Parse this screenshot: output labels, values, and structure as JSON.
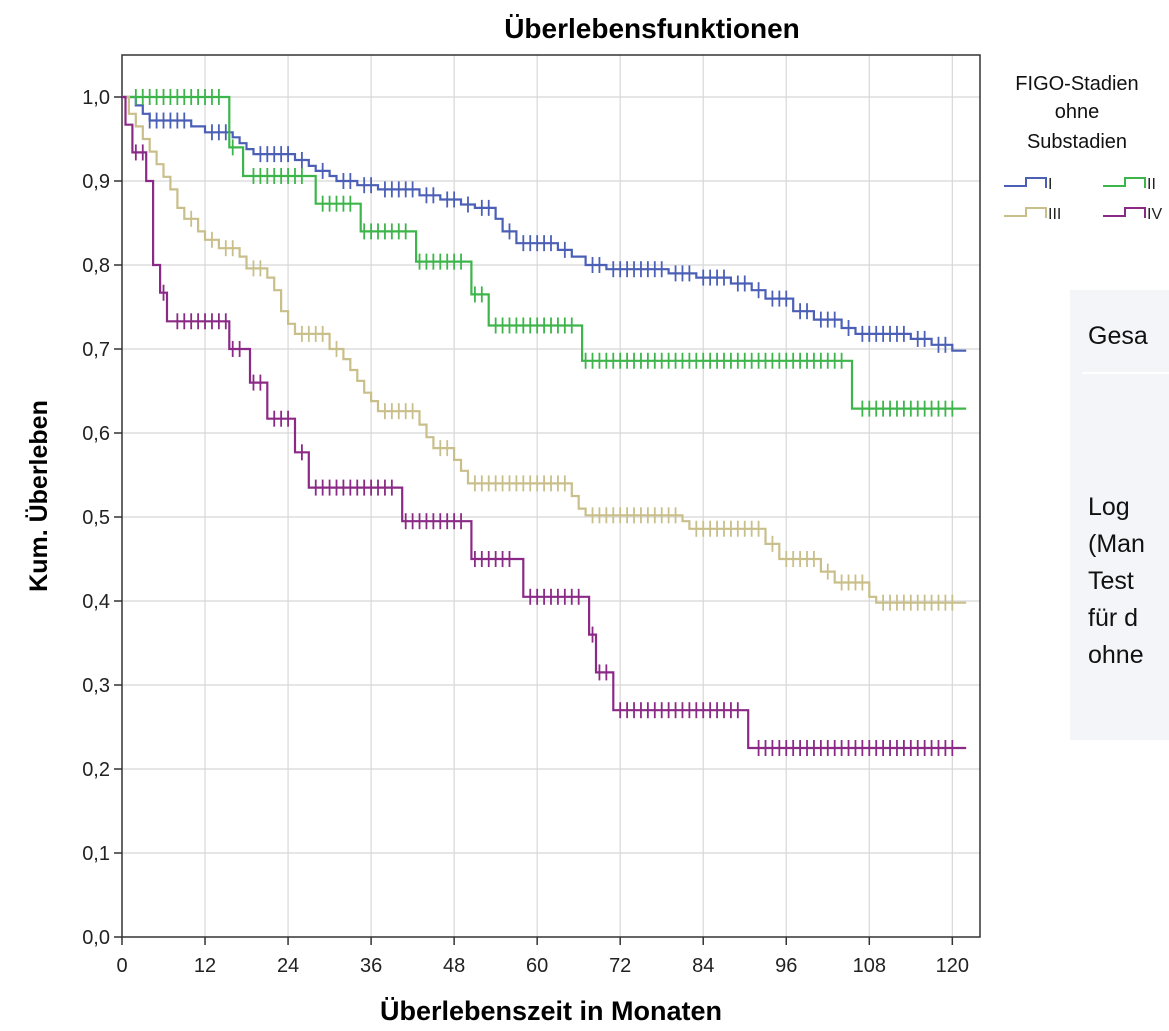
{
  "chart_data": {
    "type": "line",
    "step": true,
    "title": "Überlebensfunktionen",
    "xlabel": "Überlebenszeit in Monaten",
    "ylabel": "Kum. Überleben",
    "xlim": [
      0,
      124
    ],
    "ylim": [
      0,
      1.05
    ],
    "xticks": [
      "0",
      "12",
      "24",
      "36",
      "48",
      "60",
      "72",
      "84",
      "96",
      "108",
      "120"
    ],
    "yticks": [
      "0,0",
      "0,1",
      "0,2",
      "0,3",
      "0,4",
      "0,5",
      "0,6",
      "0,7",
      "0,8",
      "0,9",
      "1,0"
    ],
    "grid": true,
    "legend": {
      "title_lines": [
        "FIGO-Stadien",
        "ohne",
        "Substadien"
      ],
      "placement": "top-right",
      "entries": [
        "I",
        "II",
        "III",
        "IV"
      ]
    },
    "series": [
      {
        "name": "I",
        "color": "#4a5fb5",
        "steps": [
          [
            0,
            1.0
          ],
          [
            2,
            0.99
          ],
          [
            3,
            0.98
          ],
          [
            4,
            0.972
          ],
          [
            10,
            0.965
          ],
          [
            12,
            0.958
          ],
          [
            16,
            0.952
          ],
          [
            17,
            0.945
          ],
          [
            18,
            0.938
          ],
          [
            19,
            0.932
          ],
          [
            25,
            0.925
          ],
          [
            27,
            0.918
          ],
          [
            28,
            0.912
          ],
          [
            30,
            0.906
          ],
          [
            31,
            0.9
          ],
          [
            34,
            0.895
          ],
          [
            37,
            0.89
          ],
          [
            43,
            0.883
          ],
          [
            46,
            0.878
          ],
          [
            49,
            0.872
          ],
          [
            51,
            0.868
          ],
          [
            54,
            0.855
          ],
          [
            55,
            0.84
          ],
          [
            57,
            0.826
          ],
          [
            63,
            0.818
          ],
          [
            65,
            0.81
          ],
          [
            67,
            0.8
          ],
          [
            70,
            0.795
          ],
          [
            79,
            0.79
          ],
          [
            83,
            0.785
          ],
          [
            88,
            0.778
          ],
          [
            91,
            0.77
          ],
          [
            93,
            0.76
          ],
          [
            97,
            0.745
          ],
          [
            100,
            0.735
          ],
          [
            104,
            0.725
          ],
          [
            106,
            0.718
          ],
          [
            114,
            0.712
          ],
          [
            117,
            0.705
          ],
          [
            120,
            0.698
          ],
          [
            122,
            0.698
          ]
        ],
        "censored": [
          4,
          5,
          6,
          7,
          8,
          9,
          13,
          14,
          15,
          20,
          21,
          22,
          23,
          24,
          26,
          29,
          32,
          33,
          35,
          36,
          38,
          39,
          40,
          41,
          42,
          44,
          45,
          47,
          48,
          50,
          52,
          53,
          56,
          58,
          59,
          60,
          61,
          62,
          64,
          68,
          69,
          71,
          72,
          73,
          74,
          75,
          76,
          77,
          78,
          80,
          81,
          82,
          84,
          85,
          86,
          87,
          89,
          90,
          92,
          94,
          95,
          96,
          98,
          99,
          101,
          102,
          103,
          105,
          107,
          108,
          109,
          110,
          111,
          112,
          113,
          115,
          116,
          118,
          119
        ]
      },
      {
        "name": "II",
        "color": "#3db54a",
        "steps": [
          [
            0,
            1.0
          ],
          [
            15.5,
            0.94
          ],
          [
            17.5,
            0.906
          ],
          [
            28,
            0.873
          ],
          [
            34.5,
            0.84
          ],
          [
            42.5,
            0.804
          ],
          [
            50.5,
            0.765
          ],
          [
            53,
            0.728
          ],
          [
            66.5,
            0.686
          ],
          [
            105.5,
            0.629
          ],
          [
            122,
            0.629
          ]
        ],
        "censored": [
          2,
          3,
          4,
          5,
          6,
          7,
          8,
          9,
          10,
          11,
          12,
          13,
          14,
          16,
          19,
          20,
          21,
          22,
          23,
          24,
          25,
          26,
          29,
          30,
          31,
          32,
          33,
          35,
          36,
          37,
          38,
          39,
          40,
          41,
          43,
          44,
          45,
          46,
          47,
          48,
          49,
          51,
          52,
          54,
          55,
          56,
          57,
          58,
          59,
          60,
          61,
          62,
          63,
          64,
          65,
          67,
          68,
          69,
          70,
          71,
          72,
          73,
          74,
          75,
          76,
          77,
          78,
          79,
          80,
          81,
          82,
          83,
          84,
          85,
          86,
          87,
          88,
          89,
          90,
          91,
          92,
          93,
          94,
          95,
          96,
          97,
          98,
          99,
          100,
          101,
          102,
          103,
          104,
          107,
          108,
          109,
          110,
          111,
          112,
          113,
          114,
          115,
          116,
          117,
          118,
          119,
          120
        ]
      },
      {
        "name": "III",
        "color": "#c9bf8a",
        "steps": [
          [
            0,
            1.0
          ],
          [
            1,
            0.98
          ],
          [
            2,
            0.965
          ],
          [
            3,
            0.95
          ],
          [
            4,
            0.935
          ],
          [
            5,
            0.92
          ],
          [
            6,
            0.905
          ],
          [
            7,
            0.89
          ],
          [
            8,
            0.868
          ],
          [
            9,
            0.855
          ],
          [
            11,
            0.84
          ],
          [
            12,
            0.83
          ],
          [
            14,
            0.82
          ],
          [
            17,
            0.81
          ],
          [
            18,
            0.796
          ],
          [
            21,
            0.785
          ],
          [
            22,
            0.77
          ],
          [
            23,
            0.745
          ],
          [
            24,
            0.73
          ],
          [
            25,
            0.718
          ],
          [
            30,
            0.7
          ],
          [
            32,
            0.688
          ],
          [
            33,
            0.675
          ],
          [
            34,
            0.662
          ],
          [
            35,
            0.648
          ],
          [
            36,
            0.638
          ],
          [
            37,
            0.626
          ],
          [
            43,
            0.61
          ],
          [
            44,
            0.595
          ],
          [
            45,
            0.582
          ],
          [
            48,
            0.568
          ],
          [
            49,
            0.555
          ],
          [
            50,
            0.54
          ],
          [
            65,
            0.525
          ],
          [
            66,
            0.51
          ],
          [
            67,
            0.502
          ],
          [
            81,
            0.495
          ],
          [
            82,
            0.486
          ],
          [
            93,
            0.468
          ],
          [
            95,
            0.45
          ],
          [
            101,
            0.435
          ],
          [
            103,
            0.422
          ],
          [
            108,
            0.405
          ],
          [
            109,
            0.398
          ],
          [
            122,
            0.398
          ]
        ],
        "censored": [
          10,
          13,
          15,
          16,
          19,
          20,
          26,
          27,
          28,
          29,
          31,
          38,
          39,
          40,
          41,
          42,
          46,
          47,
          51,
          52,
          53,
          54,
          55,
          56,
          57,
          58,
          59,
          60,
          61,
          62,
          63,
          64,
          68,
          69,
          70,
          71,
          72,
          73,
          74,
          75,
          76,
          77,
          78,
          79,
          80,
          83,
          84,
          85,
          86,
          87,
          88,
          89,
          90,
          91,
          92,
          94,
          96,
          97,
          98,
          99,
          100,
          102,
          104,
          105,
          106,
          107,
          110,
          111,
          112,
          113,
          114,
          115,
          116,
          117,
          118,
          119,
          120
        ]
      },
      {
        "name": "IV",
        "color": "#8b2a86",
        "steps": [
          [
            0,
            1.0
          ],
          [
            0.5,
            0.967
          ],
          [
            1.5,
            0.934
          ],
          [
            3.5,
            0.9
          ],
          [
            4.5,
            0.8
          ],
          [
            5.5,
            0.767
          ],
          [
            6.5,
            0.733
          ],
          [
            15.5,
            0.7
          ],
          [
            18.5,
            0.66
          ],
          [
            21,
            0.617
          ],
          [
            25,
            0.577
          ],
          [
            27,
            0.535
          ],
          [
            40.5,
            0.495
          ],
          [
            50.5,
            0.45
          ],
          [
            58,
            0.405
          ],
          [
            67.5,
            0.36
          ],
          [
            68.5,
            0.315
          ],
          [
            71,
            0.27
          ],
          [
            90.5,
            0.225
          ],
          [
            122,
            0.225
          ]
        ],
        "censored": [
          2,
          3,
          6,
          8,
          9,
          10,
          11,
          12,
          13,
          14,
          15,
          16,
          17,
          19,
          20,
          22,
          23,
          24,
          26,
          28,
          29,
          30,
          31,
          32,
          33,
          34,
          35,
          36,
          37,
          38,
          39,
          41,
          42,
          43,
          44,
          45,
          46,
          47,
          48,
          49,
          51,
          52,
          53,
          54,
          55,
          56,
          59,
          60,
          61,
          62,
          63,
          64,
          65,
          66,
          68,
          69,
          70,
          72,
          73,
          74,
          75,
          76,
          77,
          78,
          79,
          80,
          81,
          82,
          83,
          84,
          85,
          86,
          87,
          88,
          89,
          92,
          93,
          94,
          95,
          96,
          97,
          98,
          99,
          100,
          101,
          102,
          103,
          104,
          105,
          106,
          107,
          108,
          109,
          110,
          111,
          112,
          113,
          114,
          115,
          116,
          117,
          118,
          119,
          120
        ]
      }
    ]
  },
  "side_panel": {
    "lines": [
      "Gesa",
      "Log",
      "(Man",
      "Test",
      "für d",
      "ohne"
    ]
  }
}
